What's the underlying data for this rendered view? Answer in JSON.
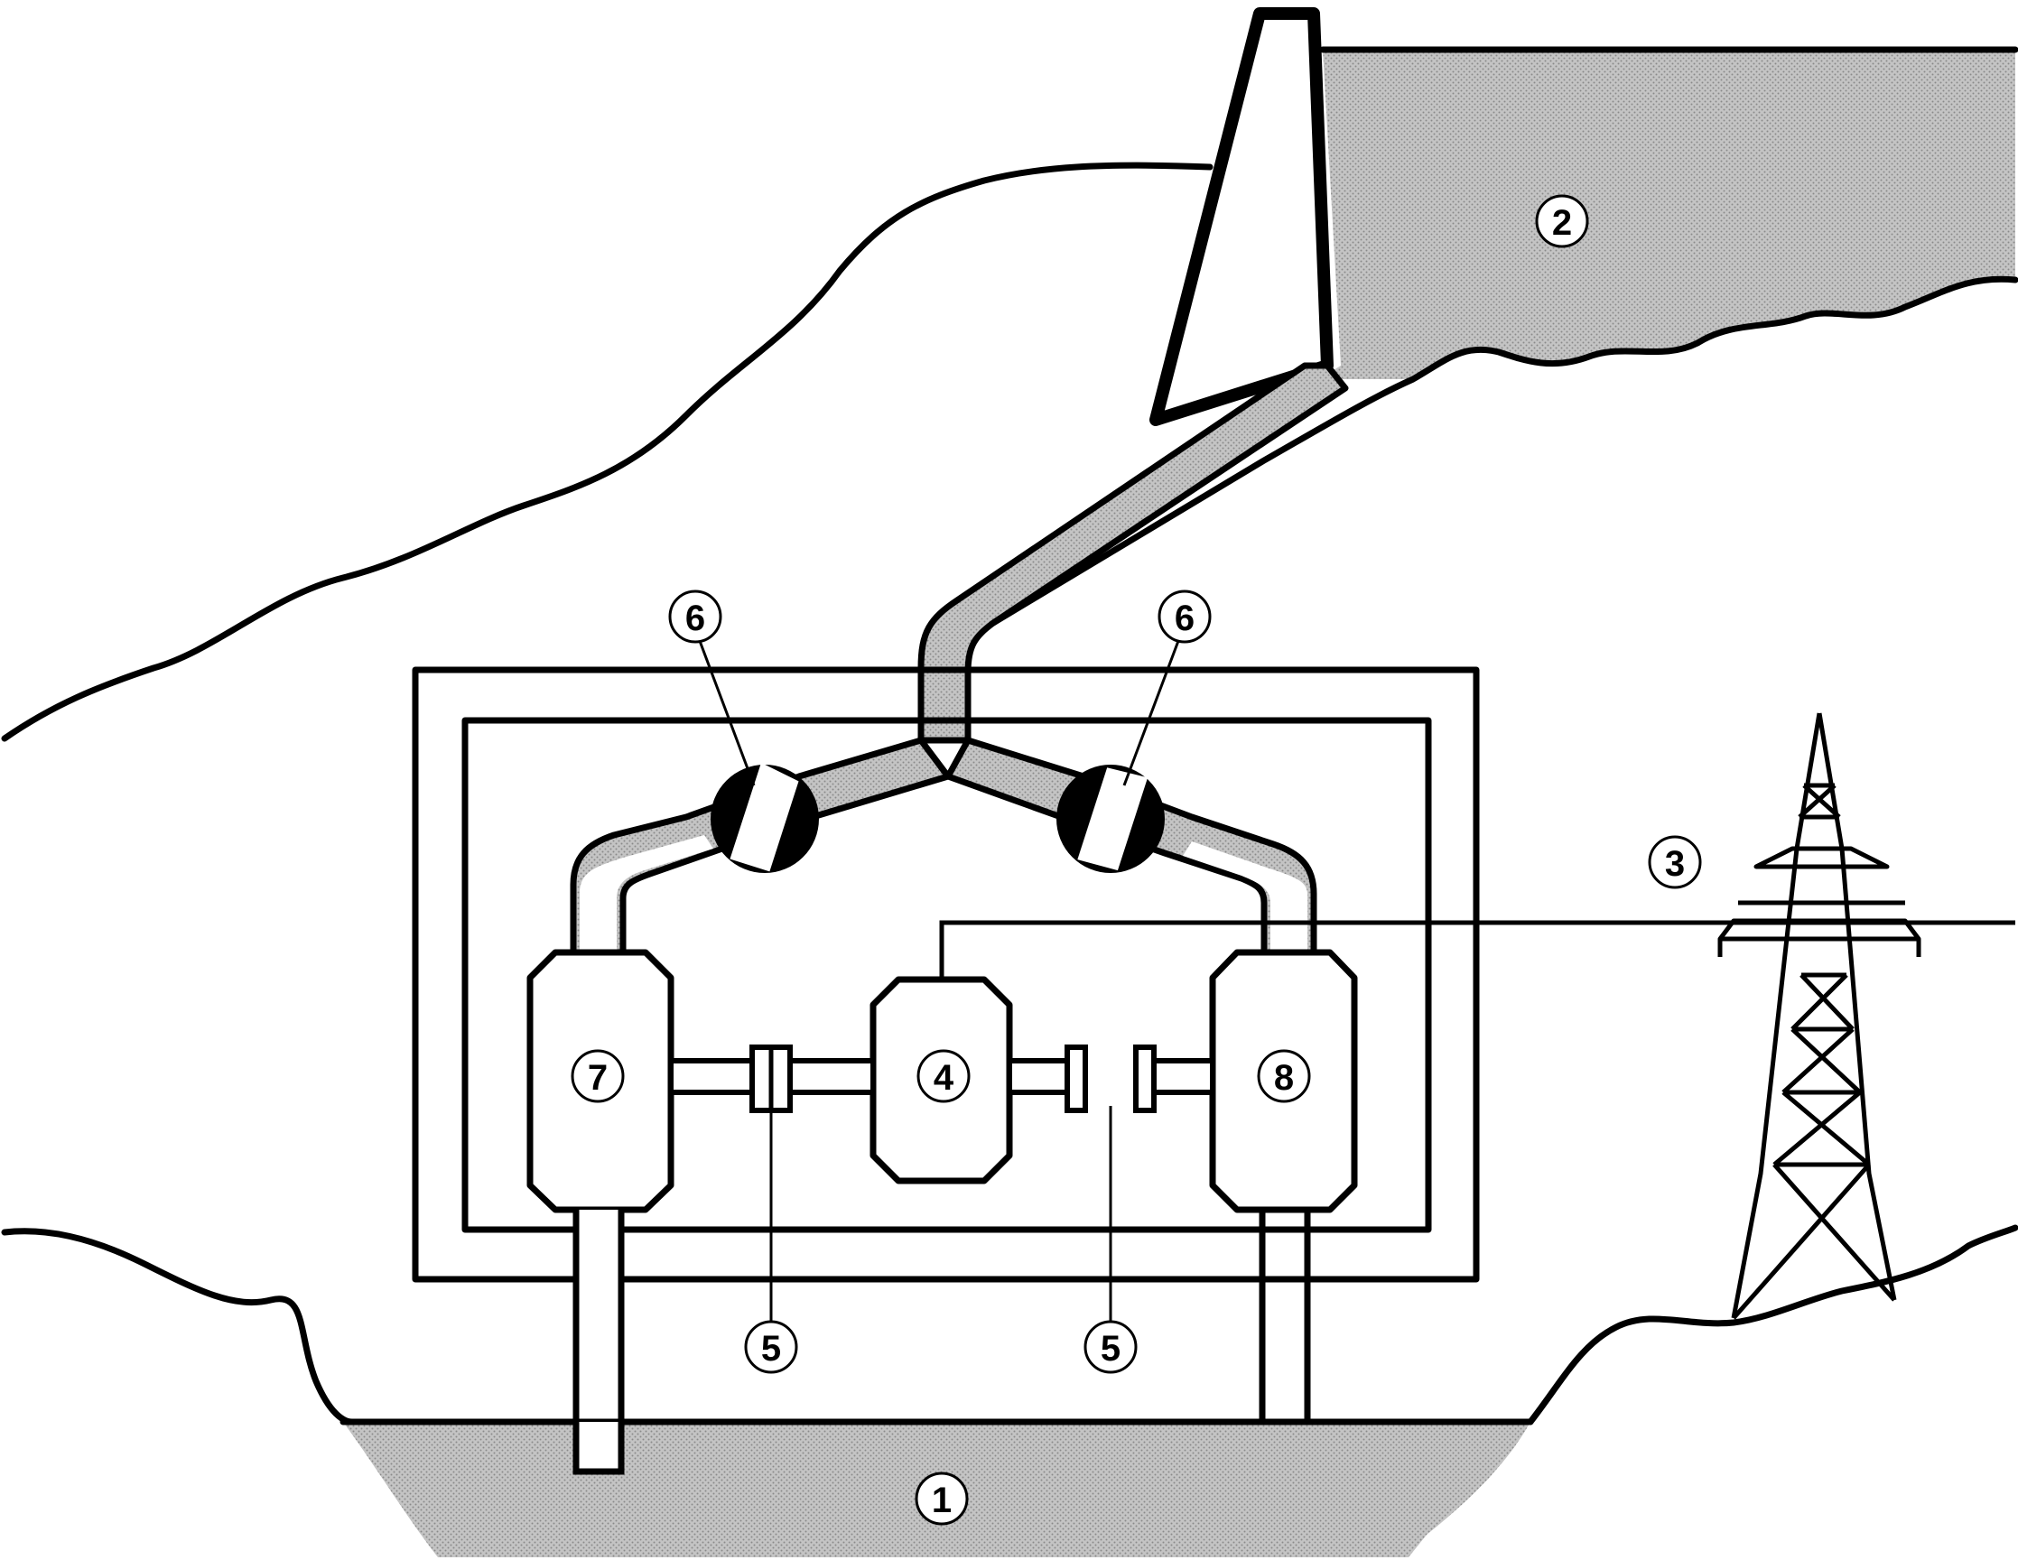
{
  "colors": {
    "water": "#b0b0b0",
    "ink": "#000000",
    "paper": "#ffffff"
  },
  "labels": {
    "lower_reservoir": "1",
    "upper_reservoir": "2",
    "transmission_line": "3",
    "motor_generator": "4",
    "coupling_left": "5",
    "coupling_right": "5",
    "valve_left": "6",
    "valve_right": "6",
    "turbine": "7",
    "pump": "8"
  },
  "icons": [
    "transmission-tower-icon",
    "valve-icon",
    "coupling-icon"
  ]
}
